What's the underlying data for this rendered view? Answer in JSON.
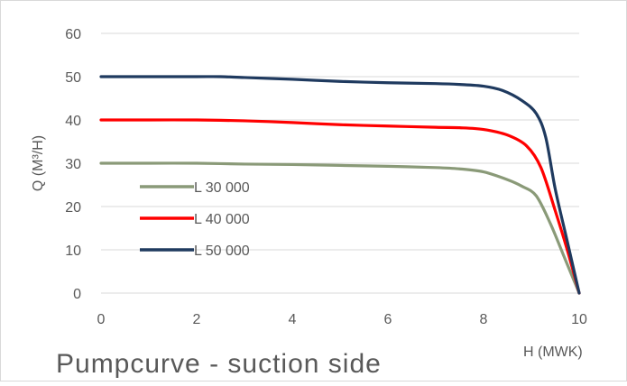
{
  "chart_data": {
    "type": "line",
    "title": "Pumpcurve - suction side",
    "xlabel": "H (MWK)",
    "ylabel": "Q (M³/H)",
    "xlim": [
      0,
      10
    ],
    "ylim": [
      0,
      60
    ],
    "x_ticks": [
      0,
      2,
      4,
      6,
      8,
      10
    ],
    "y_ticks": [
      0,
      10,
      20,
      30,
      40,
      50,
      60
    ],
    "grid": "horizontal",
    "legend_position": "left-inside",
    "series": [
      {
        "name": "L 30 000",
        "color": "#8a9a78",
        "x": [
          0,
          1,
          2,
          3,
          4,
          5,
          6,
          7,
          7.5,
          8,
          8.5,
          8.8,
          9.1,
          9.4,
          9.7,
          10
        ],
        "y": [
          30,
          30,
          30,
          29.8,
          29.7,
          29.5,
          29.3,
          29,
          28.7,
          28,
          26.2,
          24.7,
          22.5,
          16,
          8,
          0
        ]
      },
      {
        "name": "L 40 000",
        "color": "#ff0000",
        "x": [
          0,
          1,
          2,
          3,
          4,
          5,
          6,
          7,
          7.5,
          8,
          8.5,
          8.9,
          9.2,
          9.5,
          9.75,
          10
        ],
        "y": [
          40,
          40,
          40,
          39.8,
          39.4,
          38.9,
          38.6,
          38.3,
          38.2,
          37.8,
          36.5,
          34,
          29,
          19,
          10,
          0
        ]
      },
      {
        "name": "L 50 000",
        "color": "#1f3a5f",
        "x": [
          0,
          1,
          2,
          2.5,
          3,
          4,
          5,
          6,
          7,
          7.5,
          8,
          8.4,
          8.8,
          9.1,
          9.3,
          9.5,
          9.75,
          10
        ],
        "y": [
          50,
          50,
          50,
          50,
          49.8,
          49.4,
          48.9,
          48.6,
          48.4,
          48.2,
          47.8,
          46.8,
          44.5,
          41.5,
          36,
          24,
          12,
          0
        ]
      }
    ]
  }
}
